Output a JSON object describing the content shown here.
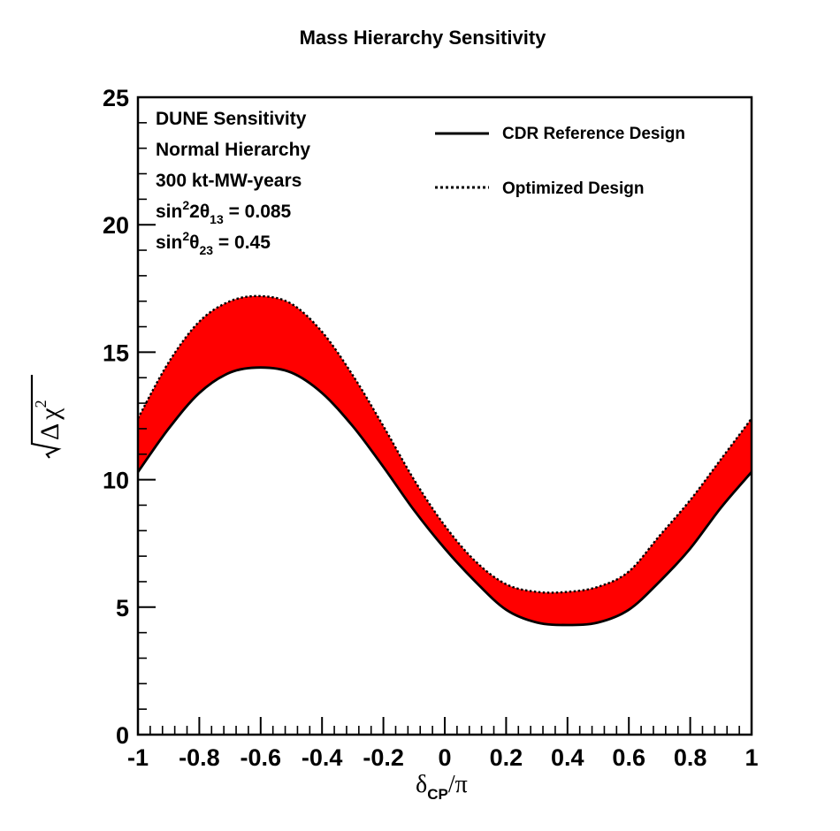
{
  "chart_data": {
    "type": "area",
    "title": "Mass Hierarchy Sensitivity",
    "xlabel": {
      "delta": "δ",
      "sub": "CP",
      "rest": "/π"
    },
    "ylabel": {
      "delta": "Δ",
      "chi": "χ",
      "sup": "2"
    },
    "xlim": [
      -1,
      1
    ],
    "ylim": [
      0,
      25
    ],
    "x_ticks": [
      "-1",
      "-0.8",
      "-0.6",
      "-0.4",
      "-0.2",
      "0",
      "0.2",
      "0.4",
      "0.6",
      "0.8",
      "1"
    ],
    "y_ticks": [
      "0",
      "5",
      "10",
      "15",
      "20",
      "25"
    ],
    "grid": false,
    "legend_position": "top-right",
    "band_color": "#ff0000",
    "x": [
      -1.0,
      -0.9,
      -0.8,
      -0.7,
      -0.6,
      -0.5,
      -0.4,
      -0.3,
      -0.2,
      -0.1,
      0.0,
      0.1,
      0.2,
      0.3,
      0.4,
      0.5,
      0.6,
      0.7,
      0.8,
      0.9,
      1.0
    ],
    "series": [
      {
        "name": "CDR Reference Design",
        "line_style": "solid",
        "values": [
          10.3,
          12.0,
          13.4,
          14.2,
          14.4,
          14.2,
          13.4,
          12.1,
          10.5,
          8.8,
          7.3,
          6.0,
          4.9,
          4.4,
          4.3,
          4.4,
          4.9,
          6.0,
          7.3,
          8.9,
          10.3
        ]
      },
      {
        "name": "Optimized Design",
        "line_style": "dotted",
        "values": [
          12.4,
          14.6,
          16.2,
          17.0,
          17.2,
          16.9,
          15.8,
          14.1,
          12.1,
          10.0,
          8.2,
          6.8,
          5.9,
          5.6,
          5.6,
          5.8,
          6.4,
          7.8,
          9.2,
          10.8,
          12.4
        ]
      }
    ],
    "annotations": [
      {
        "text": "DUNE Sensitivity"
      },
      {
        "text": "Normal Hierarchy"
      },
      {
        "text": "300 kt-MW-years"
      },
      {
        "base": "sin",
        "sup": "2",
        "mid": "2θ",
        "sub": "13",
        "rest": " = 0.085"
      },
      {
        "base": "sin",
        "sup": "2",
        "mid": "θ",
        "sub": "23",
        "rest": " = 0.45"
      }
    ]
  }
}
